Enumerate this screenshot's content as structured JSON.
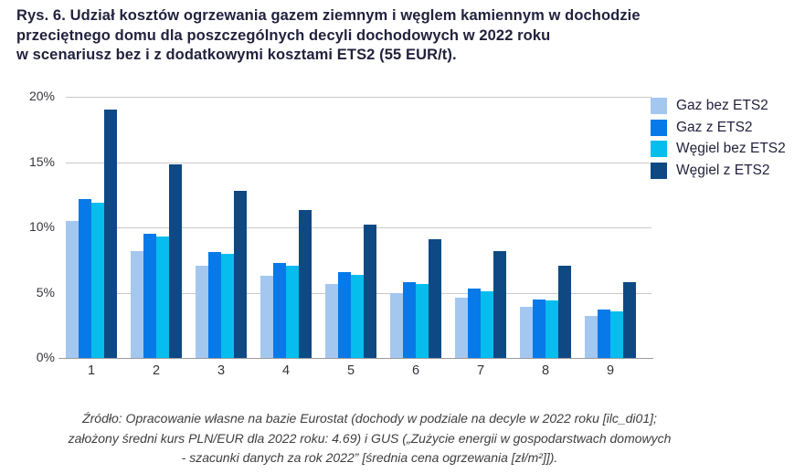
{
  "figure": {
    "title_lines": [
      "Rys. 6. Udział kosztów ogrzewania gazem ziemnym i węglem kamiennym w dochodzie",
      "przeciętnego domu dla poszczególnych decyli dochodowych w 2022 roku",
      "w scenariusz bez i z dodatkowymi kosztami ETS2 (55 EUR/t)."
    ],
    "source_lines": [
      "Źródło: Opracowanie własne na bazie Eurostat (dochody w podziale na decyle w 2022 roku [ilc_di01];",
      "założony średni kurs PLN/EUR dla 2022 roku: 4.69) i GUS („Zużycie energii w gospodarstwach domowych",
      "- szacunki danych za rok 2022” [średnia cena ogrzewania [zł/m²]])."
    ]
  },
  "chart_data": {
    "type": "bar",
    "title": "Rys. 6. Udział kosztów ogrzewania gazem ziemnym i węglem kamiennym w dochodzie przeciętnego domu dla poszczególnych decyli dochodowych w 2022 roku w scenariusz bez i z dodatkowymi kosztami ETS2 (55 EUR/t).",
    "categories": [
      "1",
      "2",
      "3",
      "4",
      "5",
      "6",
      "7",
      "8",
      "9"
    ],
    "series": [
      {
        "name": "Gaz bez ETS2",
        "color": "#A4C7F0",
        "values": [
          10.5,
          8.2,
          7.1,
          6.3,
          5.7,
          5.0,
          4.6,
          3.9,
          3.2
        ]
      },
      {
        "name": "Gaz z ETS2",
        "color": "#0879E8",
        "values": [
          12.2,
          9.5,
          8.1,
          7.3,
          6.6,
          5.8,
          5.3,
          4.5,
          3.7
        ]
      },
      {
        "name": "Węgiel bez ETS2",
        "color": "#06BDEE",
        "values": [
          11.9,
          9.3,
          8.0,
          7.1,
          6.4,
          5.7,
          5.1,
          4.4,
          3.6
        ]
      },
      {
        "name": "Węgiel z ETS2",
        "color": "#0E4984",
        "values": [
          19.0,
          14.8,
          12.8,
          11.3,
          10.2,
          9.1,
          8.2,
          7.1,
          5.8
        ]
      }
    ],
    "xlabel": "",
    "ylabel": "",
    "ylim": [
      0,
      20
    ],
    "yticks": [
      0,
      5,
      10,
      15,
      20
    ],
    "ytick_labels": [
      "0%",
      "5%",
      "10%",
      "15%",
      "20%"
    ],
    "grid": true,
    "legend_position": "top-right",
    "grid_color": "#C9C9C9",
    "axis_color": "#9A9AA0"
  }
}
